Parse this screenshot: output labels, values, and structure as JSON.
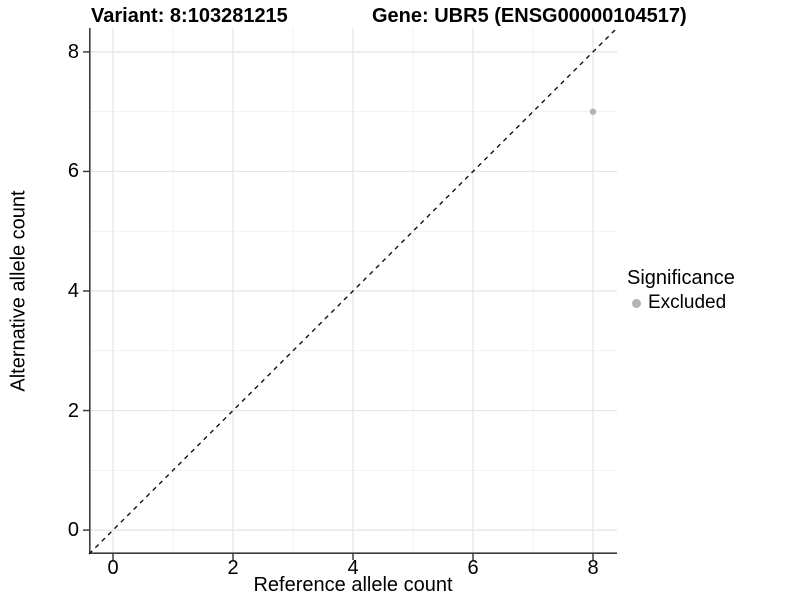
{
  "header": {
    "title_variant": "Variant: 8:103281215",
    "title_gene": "Gene: UBR5 (ENSG00000104517)"
  },
  "chart_data": {
    "type": "scatter",
    "title": "Variant: 8:103281215 — Gene: UBR5 (ENSG00000104517)",
    "xlabel": "Reference allele count",
    "ylabel": "Alternative allele count",
    "xlim": [
      -0.4,
      8.4
    ],
    "ylim": [
      -0.4,
      8.4
    ],
    "x_ticks": [
      0,
      2,
      4,
      6,
      8
    ],
    "y_ticks": [
      0,
      2,
      4,
      6,
      8
    ],
    "x_minor_ticks": [
      1,
      3,
      5,
      7
    ],
    "y_minor_ticks": [
      1,
      3,
      5,
      7
    ],
    "grid": "major and minor gridlines, white panel background",
    "series": [
      {
        "name": "Excluded",
        "color": "#b4b4b4",
        "points": [
          {
            "x": 8,
            "y": 7
          }
        ]
      }
    ],
    "reference_line": {
      "type": "identity",
      "slope": 1,
      "intercept": 0,
      "style": "dashed",
      "color": "#111111"
    },
    "legend": {
      "title": "Significance",
      "position": "right",
      "items": [
        {
          "label": "Excluded",
          "color": "#b4b4b4"
        }
      ]
    }
  },
  "colors": {
    "background": "#ffffff",
    "grid_major": "#e4e4e4",
    "grid_minor": "#f1f1f1",
    "axis_line": "#3d3d3d",
    "text": "#000000",
    "point": "#b4b4b4"
  }
}
